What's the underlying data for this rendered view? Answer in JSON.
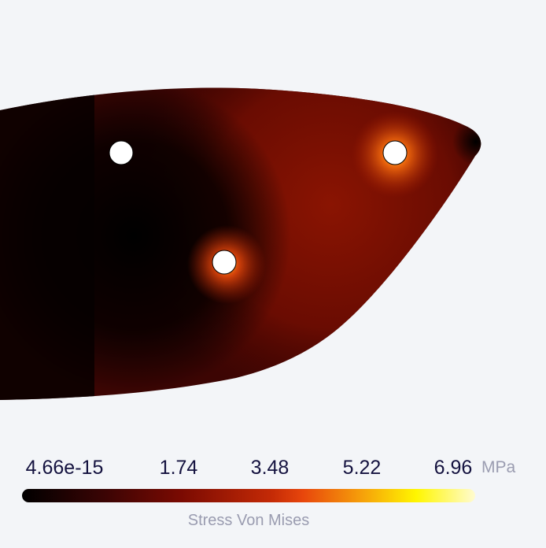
{
  "legend": {
    "ticks": [
      "4.66e-15",
      "1.74",
      "3.48",
      "5.22",
      "6.96"
    ],
    "unit": "MPa",
    "title": "Stress Von Mises",
    "colormap": [
      "#000000",
      "#7a0a02",
      "#e8460c",
      "#fff600",
      "#fffbd0"
    ],
    "range": [
      4.66e-15,
      6.96
    ]
  }
}
